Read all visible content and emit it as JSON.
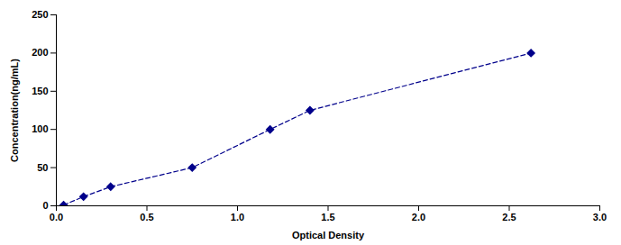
{
  "chart_data": {
    "type": "line",
    "xlabel": "Optical Density",
    "ylabel": "Concentration(ng/mL)",
    "x": [
      0.04,
      0.15,
      0.3,
      0.75,
      1.18,
      1.4,
      2.62
    ],
    "values": [
      1,
      12,
      25,
      50,
      100,
      125,
      200
    ],
    "color": "#00008B",
    "marker": "diamond",
    "line_style": "dashed",
    "xlim": [
      0,
      3
    ],
    "ylim": [
      0,
      250
    ],
    "xticks": [
      {
        "value": 0,
        "label": "0.0"
      },
      0.5,
      {
        "value": 1,
        "label": "1.0"
      },
      1.5,
      {
        "value": 2,
        "label": "2.0"
      },
      2.5,
      {
        "value": 3,
        "label": "3.0"
      }
    ],
    "yticks": [
      0,
      50,
      100,
      150,
      200,
      250
    ],
    "grid": false
  }
}
